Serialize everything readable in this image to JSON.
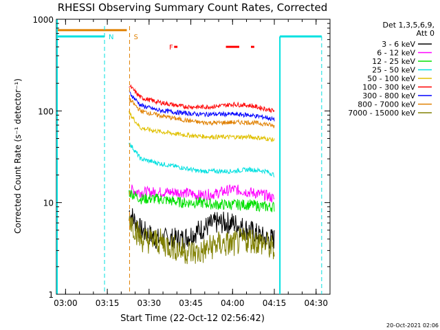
{
  "chart_data": {
    "type": "line",
    "title": "RHESSI Observing Summary Count Rates, Corrected",
    "xlabel": "Start Time (22-Oct-12 02:56:42)",
    "ylabel": "Corrected Count Rate (s⁻¹ detector⁻¹)",
    "y_scale": "log",
    "ylim": [
      1,
      1000
    ],
    "xlim": [
      "02:56:42",
      "04:35:00"
    ],
    "x_ticks": [
      "03:00",
      "03:15",
      "03:30",
      "03:45",
      "04:00",
      "04:15",
      "04:30"
    ],
    "y_ticks": [
      "1",
      "10",
      "100",
      "1000"
    ],
    "footer": "20-Oct-2021 02:06",
    "legend_header": [
      "Det 1,3,5,6,9,",
      "Att 0"
    ],
    "legend_position": "right",
    "markers": [
      {
        "label": "N",
        "time": "03:14",
        "color": "#00e0e0"
      },
      {
        "label": "S",
        "time": "03:23",
        "color": "#e08000"
      }
    ],
    "flare_label": "F",
    "flare_color": "#ff0000",
    "night_bars": [
      [
        "02:56:42",
        "03:22"
      ],
      [
        "04:17",
        "04:32"
      ]
    ],
    "night_bar_colors": [
      "#e08000",
      "#00e0e0"
    ],
    "series": [
      {
        "name": "3 - 6 keV",
        "color": "#000000",
        "values": [
          [
            3.38,
            8
          ],
          [
            3.45,
            5
          ],
          [
            3.55,
            4
          ],
          [
            3.7,
            4
          ],
          [
            3.8,
            5
          ],
          [
            3.9,
            6
          ],
          [
            4.0,
            6
          ],
          [
            4.1,
            5
          ],
          [
            4.2,
            4
          ],
          [
            4.25,
            4
          ]
        ]
      },
      {
        "name": "6 - 12 keV",
        "color": "#ff00ff",
        "values": [
          [
            3.38,
            14
          ],
          [
            3.45,
            13
          ],
          [
            3.55,
            13
          ],
          [
            3.7,
            13
          ],
          [
            3.8,
            12
          ],
          [
            3.9,
            12.5
          ],
          [
            4.0,
            14
          ],
          [
            4.1,
            13
          ],
          [
            4.2,
            12
          ],
          [
            4.25,
            11
          ]
        ]
      },
      {
        "name": "12 - 25 keV",
        "color": "#00e000",
        "values": [
          [
            3.38,
            13
          ],
          [
            3.45,
            11
          ],
          [
            3.55,
            11
          ],
          [
            3.7,
            10
          ],
          [
            3.8,
            10
          ],
          [
            3.9,
            9.5
          ],
          [
            4.0,
            9.5
          ],
          [
            4.1,
            9.5
          ],
          [
            4.2,
            9
          ],
          [
            4.25,
            9
          ]
        ]
      },
      {
        "name": "25 - 50 keV",
        "color": "#00e0e0",
        "values": [
          [
            3.38,
            45
          ],
          [
            3.45,
            30
          ],
          [
            3.55,
            27
          ],
          [
            3.7,
            24
          ],
          [
            3.8,
            22
          ],
          [
            3.9,
            22
          ],
          [
            4.0,
            22
          ],
          [
            4.1,
            23
          ],
          [
            4.2,
            22
          ],
          [
            4.25,
            20
          ]
        ]
      },
      {
        "name": "50 - 100 keV",
        "color": "#e0c000",
        "values": [
          [
            3.38,
            95
          ],
          [
            3.45,
            65
          ],
          [
            3.55,
            60
          ],
          [
            3.7,
            55
          ],
          [
            3.8,
            53
          ],
          [
            3.9,
            52
          ],
          [
            4.0,
            52
          ],
          [
            4.1,
            52
          ],
          [
            4.2,
            50
          ],
          [
            4.25,
            48
          ]
        ]
      },
      {
        "name": "100 - 300 keV",
        "color": "#ff0000",
        "values": [
          [
            3.38,
            190
          ],
          [
            3.45,
            140
          ],
          [
            3.55,
            125
          ],
          [
            3.7,
            112
          ],
          [
            3.8,
            110
          ],
          [
            3.9,
            112
          ],
          [
            4.0,
            118
          ],
          [
            4.1,
            115
          ],
          [
            4.2,
            105
          ],
          [
            4.25,
            100
          ]
        ]
      },
      {
        "name": "300 - 800 keV",
        "color": "#0000ff",
        "values": [
          [
            3.38,
            160
          ],
          [
            3.45,
            115
          ],
          [
            3.55,
            102
          ],
          [
            3.7,
            95
          ],
          [
            3.8,
            92
          ],
          [
            3.9,
            92
          ],
          [
            4.0,
            92
          ],
          [
            4.1,
            90
          ],
          [
            4.2,
            85
          ],
          [
            4.25,
            80
          ]
        ]
      },
      {
        "name": "800 - 7000 keV",
        "color": "#e08000",
        "values": [
          [
            3.38,
            135
          ],
          [
            3.45,
            100
          ],
          [
            3.55,
            90
          ],
          [
            3.7,
            80
          ],
          [
            3.8,
            75
          ],
          [
            3.9,
            74
          ],
          [
            4.0,
            75
          ],
          [
            4.1,
            75
          ],
          [
            4.2,
            72
          ],
          [
            4.25,
            68
          ]
        ]
      },
      {
        "name": "7000 - 15000 keV",
        "color": "#808000",
        "values": [
          [
            3.38,
            7
          ],
          [
            3.45,
            4
          ],
          [
            3.55,
            3.8
          ],
          [
            3.7,
            3
          ],
          [
            3.8,
            2.8
          ],
          [
            3.9,
            3.5
          ],
          [
            4.0,
            3.5
          ],
          [
            4.1,
            4
          ],
          [
            4.2,
            3.5
          ],
          [
            4.25,
            3
          ]
        ]
      }
    ]
  }
}
